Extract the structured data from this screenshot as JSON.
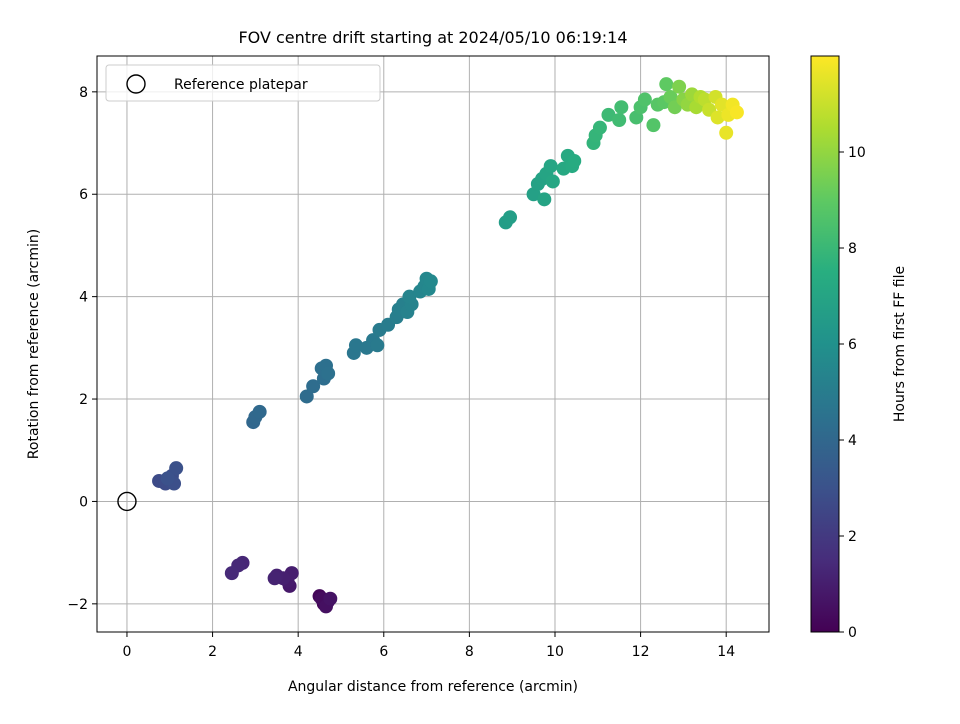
{
  "chart_data": {
    "type": "scatter",
    "title": "FOV centre drift starting at 2024/05/10 06:19:14",
    "xlabel": "Angular distance from reference (arcmin)",
    "ylabel": "Rotation from reference (arcmin)",
    "xlim": [
      -0.7,
      15.0
    ],
    "ylim": [
      -2.55,
      8.7
    ],
    "xticks": [
      0,
      2,
      4,
      6,
      8,
      10,
      12,
      14
    ],
    "xtick_labels": [
      "0",
      "2",
      "4",
      "6",
      "8",
      "10",
      "12",
      "14"
    ],
    "yticks": [
      -2,
      0,
      2,
      4,
      6,
      8
    ],
    "ytick_labels": [
      "−2",
      "0",
      "2",
      "4",
      "6",
      "8"
    ],
    "grid": true,
    "legend": {
      "placement": "top-left",
      "entries": [
        "Reference platepar"
      ]
    },
    "reference_point": {
      "x": 0,
      "y": 0,
      "marker": "open-circle"
    },
    "colorbar": {
      "label": "Hours from first FF file",
      "colormap": "viridis",
      "range": [
        0,
        12
      ],
      "ticks": [
        0,
        2,
        4,
        6,
        8,
        10
      ],
      "tick_labels": [
        "0",
        "2",
        "4",
        "6",
        "8",
        "10"
      ]
    },
    "series": [
      {
        "marker_colormap": "viridis",
        "points": [
          {
            "x": 4.6,
            "y": -2.0,
            "c": 0.1
          },
          {
            "x": 4.5,
            "y": -1.85,
            "c": 0.2
          },
          {
            "x": 4.7,
            "y": -1.95,
            "c": 0.3
          },
          {
            "x": 4.55,
            "y": -1.9,
            "c": 0.4
          },
          {
            "x": 4.65,
            "y": -2.05,
            "c": 0.5
          },
          {
            "x": 4.75,
            "y": -1.9,
            "c": 0.6
          },
          {
            "x": 3.8,
            "y": -1.65,
            "c": 0.8
          },
          {
            "x": 3.75,
            "y": -1.55,
            "c": 0.9
          },
          {
            "x": 3.85,
            "y": -1.4,
            "c": 1.0
          },
          {
            "x": 3.65,
            "y": -1.5,
            "c": 1.05
          },
          {
            "x": 3.5,
            "y": -1.45,
            "c": 1.1
          },
          {
            "x": 3.45,
            "y": -1.5,
            "c": 1.15
          },
          {
            "x": 2.7,
            "y": -1.2,
            "c": 1.3
          },
          {
            "x": 2.6,
            "y": -1.25,
            "c": 1.35
          },
          {
            "x": 2.45,
            "y": -1.4,
            "c": 1.4
          },
          {
            "x": 0.75,
            "y": 0.4,
            "c": 2.7
          },
          {
            "x": 0.9,
            "y": 0.35,
            "c": 2.75
          },
          {
            "x": 1.0,
            "y": 0.4,
            "c": 2.8
          },
          {
            "x": 1.05,
            "y": 0.5,
            "c": 2.85
          },
          {
            "x": 1.1,
            "y": 0.35,
            "c": 2.9
          },
          {
            "x": 1.15,
            "y": 0.65,
            "c": 2.95
          },
          {
            "x": 0.95,
            "y": 0.45,
            "c": 3.0
          },
          {
            "x": 2.95,
            "y": 1.55,
            "c": 4.0
          },
          {
            "x": 3.0,
            "y": 1.65,
            "c": 4.05
          },
          {
            "x": 3.1,
            "y": 1.75,
            "c": 4.1
          },
          {
            "x": 4.2,
            "y": 2.05,
            "c": 4.2
          },
          {
            "x": 4.35,
            "y": 2.25,
            "c": 4.25
          },
          {
            "x": 4.6,
            "y": 2.4,
            "c": 4.3
          },
          {
            "x": 4.55,
            "y": 2.6,
            "c": 4.35
          },
          {
            "x": 4.65,
            "y": 2.65,
            "c": 4.4
          },
          {
            "x": 4.7,
            "y": 2.5,
            "c": 4.45
          },
          {
            "x": 5.3,
            "y": 2.9,
            "c": 4.7
          },
          {
            "x": 5.35,
            "y": 3.05,
            "c": 4.75
          },
          {
            "x": 5.6,
            "y": 3.0,
            "c": 4.8
          },
          {
            "x": 5.75,
            "y": 3.15,
            "c": 4.85
          },
          {
            "x": 5.85,
            "y": 3.05,
            "c": 4.9
          },
          {
            "x": 5.9,
            "y": 3.35,
            "c": 4.95
          },
          {
            "x": 6.1,
            "y": 3.45,
            "c": 5.0
          },
          {
            "x": 6.3,
            "y": 3.6,
            "c": 5.1
          },
          {
            "x": 6.35,
            "y": 3.75,
            "c": 5.15
          },
          {
            "x": 6.45,
            "y": 3.85,
            "c": 5.2
          },
          {
            "x": 6.55,
            "y": 3.7,
            "c": 5.25
          },
          {
            "x": 6.65,
            "y": 3.85,
            "c": 5.3
          },
          {
            "x": 6.6,
            "y": 4.0,
            "c": 5.35
          },
          {
            "x": 6.85,
            "y": 4.1,
            "c": 5.4
          },
          {
            "x": 6.95,
            "y": 4.2,
            "c": 5.45
          },
          {
            "x": 7.0,
            "y": 4.35,
            "c": 5.5
          },
          {
            "x": 7.05,
            "y": 4.15,
            "c": 5.55
          },
          {
            "x": 7.1,
            "y": 4.3,
            "c": 5.6
          },
          {
            "x": 8.85,
            "y": 5.45,
            "c": 6.6
          },
          {
            "x": 8.95,
            "y": 5.55,
            "c": 6.65
          },
          {
            "x": 9.5,
            "y": 6.0,
            "c": 6.8
          },
          {
            "x": 9.6,
            "y": 6.2,
            "c": 6.85
          },
          {
            "x": 9.7,
            "y": 6.3,
            "c": 6.9
          },
          {
            "x": 9.75,
            "y": 5.9,
            "c": 6.95
          },
          {
            "x": 9.8,
            "y": 6.4,
            "c": 7.0
          },
          {
            "x": 9.9,
            "y": 6.55,
            "c": 7.05
          },
          {
            "x": 9.95,
            "y": 6.25,
            "c": 7.1
          },
          {
            "x": 10.2,
            "y": 6.5,
            "c": 7.2
          },
          {
            "x": 10.3,
            "y": 6.75,
            "c": 7.25
          },
          {
            "x": 10.4,
            "y": 6.55,
            "c": 7.3
          },
          {
            "x": 10.45,
            "y": 6.65,
            "c": 7.35
          },
          {
            "x": 10.9,
            "y": 7.0,
            "c": 7.8
          },
          {
            "x": 10.95,
            "y": 7.15,
            "c": 7.85
          },
          {
            "x": 11.05,
            "y": 7.3,
            "c": 7.9
          },
          {
            "x": 11.25,
            "y": 7.55,
            "c": 8.1
          },
          {
            "x": 11.5,
            "y": 7.45,
            "c": 8.2
          },
          {
            "x": 11.55,
            "y": 7.7,
            "c": 8.25
          },
          {
            "x": 11.9,
            "y": 7.5,
            "c": 8.4
          },
          {
            "x": 12.0,
            "y": 7.7,
            "c": 8.5
          },
          {
            "x": 12.1,
            "y": 7.85,
            "c": 8.6
          },
          {
            "x": 12.3,
            "y": 7.35,
            "c": 8.7
          },
          {
            "x": 12.4,
            "y": 7.75,
            "c": 8.8
          },
          {
            "x": 12.55,
            "y": 7.8,
            "c": 8.9
          },
          {
            "x": 12.6,
            "y": 8.15,
            "c": 9.0
          },
          {
            "x": 12.7,
            "y": 7.9,
            "c": 9.2
          },
          {
            "x": 12.8,
            "y": 7.7,
            "c": 9.4
          },
          {
            "x": 12.9,
            "y": 8.1,
            "c": 9.6
          },
          {
            "x": 13.0,
            "y": 7.85,
            "c": 9.8
          },
          {
            "x": 13.1,
            "y": 7.75,
            "c": 10.0
          },
          {
            "x": 13.2,
            "y": 7.95,
            "c": 10.2
          },
          {
            "x": 13.3,
            "y": 7.7,
            "c": 10.4
          },
          {
            "x": 13.4,
            "y": 7.9,
            "c": 10.6
          },
          {
            "x": 13.5,
            "y": 7.85,
            "c": 10.8
          },
          {
            "x": 13.6,
            "y": 7.65,
            "c": 11.0
          },
          {
            "x": 13.75,
            "y": 7.9,
            "c": 11.2
          },
          {
            "x": 13.8,
            "y": 7.5,
            "c": 11.4
          },
          {
            "x": 13.9,
            "y": 7.75,
            "c": 11.5
          },
          {
            "x": 14.0,
            "y": 7.2,
            "c": 11.6
          },
          {
            "x": 14.05,
            "y": 7.55,
            "c": 11.7
          },
          {
            "x": 14.15,
            "y": 7.75,
            "c": 11.8
          },
          {
            "x": 14.25,
            "y": 7.6,
            "c": 11.9
          }
        ]
      }
    ]
  }
}
